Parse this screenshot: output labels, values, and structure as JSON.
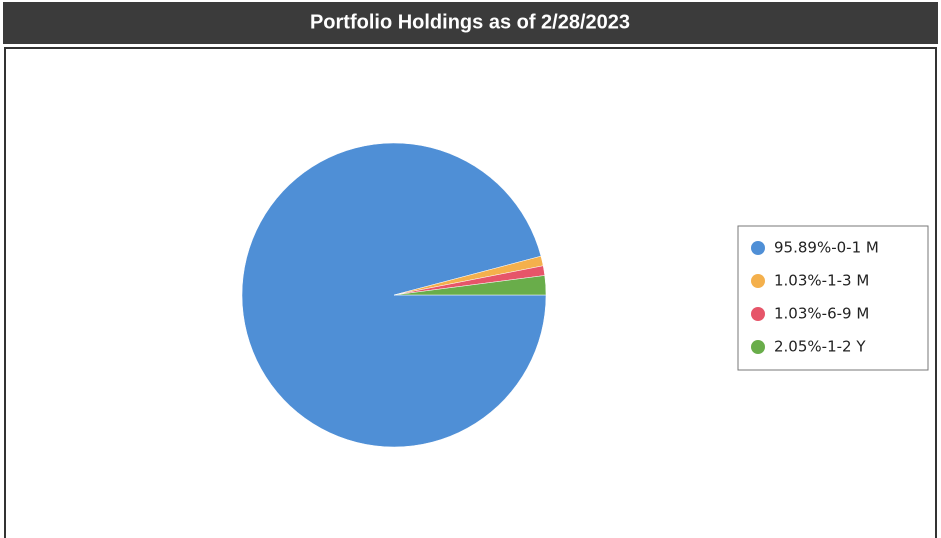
{
  "chart_data": {
    "type": "pie",
    "title": "Portfolio Holdings as of 2/28/2023",
    "categories": [
      "95.89%-0-1 M",
      "1.03%-1-3 M",
      "1.03%-6-9 M",
      "2.05%-1-2 Y"
    ],
    "values": [
      95.89,
      1.03,
      1.03,
      2.05
    ],
    "colors": [
      "#4f8fd6",
      "#f4b04c",
      "#e65569",
      "#69ad4a"
    ],
    "legend": "right"
  }
}
